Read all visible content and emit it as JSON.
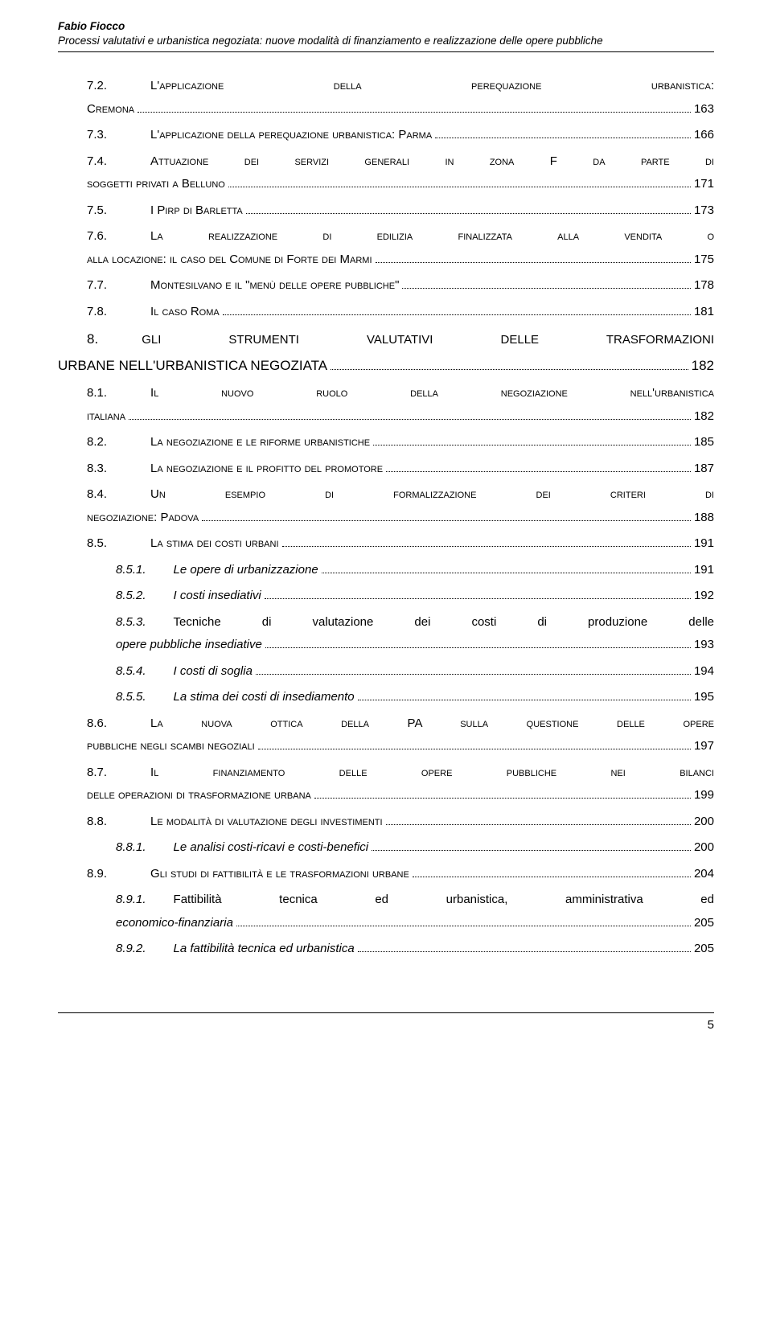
{
  "header": {
    "author": "Fabio Fiocco",
    "subtitle": "Processi valutativi e urbanistica negoziata: nuove modalità di finanziamento e realizzazione delle opere pubbliche"
  },
  "footer": {
    "pagenum": "5"
  },
  "toc": {
    "e72_num": "7.2.",
    "e72_first": "L'applicazione della perequazione urbanistica:",
    "e72_last": "Cremona",
    "e72_pg": "163",
    "e73_num": "7.3.",
    "e73_title": "L'applicazione della perequazione urbanistica: Parma",
    "e73_pg": "166",
    "e74_num": "7.4.",
    "e74_first": "Attuazione dei servizi generali in zona F da parte di",
    "e74_last": "soggetti privati a Belluno",
    "e74_pg": "171",
    "e75_num": "7.5.",
    "e75_title": "I Pirp di Barletta",
    "e75_pg": "173",
    "e76_num": "7.6.",
    "e76_first": "La realizzazione di edilizia finalizzata alla vendita o",
    "e76_last": "alla locazione: il caso del Comune di Forte dei Marmi",
    "e76_pg": "175",
    "e77_num": "7.7.",
    "e77_title": "Montesilvano e il \"menù delle opere pubbliche\"",
    "e77_pg": "178",
    "e78_num": "7.8.",
    "e78_title": "Il caso Roma",
    "e78_pg": "181",
    "s8_num": "8.",
    "s8_first": "GLI STRUMENTI VALUTATIVI DELLE TRASFORMAZIONI",
    "s8_last": "URBANE NELL'URBANISTICA NEGOZIATA",
    "s8_pg": "182",
    "e81_num": "8.1.",
    "e81_first": "Il nuovo ruolo della negoziazione nell'urbanistica",
    "e81_last": "italiana",
    "e81_pg": "182",
    "e82_num": "8.2.",
    "e82_title": "La negoziazione e le riforme urbanistiche",
    "e82_pg": "185",
    "e83_num": "8.3.",
    "e83_title": "La negoziazione e il profitto del promotore",
    "e83_pg": "187",
    "e84_num": "8.4.",
    "e84_first": "Un esempio di formalizzazione dei criteri di",
    "e84_last": "negoziazione: Padova",
    "e84_pg": "188",
    "e85_num": "8.5.",
    "e85_title": "La stima dei costi urbani",
    "e85_pg": "191",
    "e851_num": "8.5.1.",
    "e851_title": "Le opere di urbanizzazione",
    "e851_pg": "191",
    "e852_num": "8.5.2.",
    "e852_title": "I costi insediativi",
    "e852_pg": "192",
    "e853_num": "8.5.3.",
    "e853_first": "Tecniche di valutazione dei costi di produzione delle",
    "e853_last": "opere pubbliche insediative",
    "e853_pg": "193",
    "e854_num": "8.5.4.",
    "e854_title": "I costi di soglia",
    "e854_pg": "194",
    "e855_num": "8.5.5.",
    "e855_title": "La stima dei costi di insediamento",
    "e855_pg": "195",
    "e86_num": "8.6.",
    "e86_first": "La nuova ottica della PA sulla questione delle opere",
    "e86_last": "pubbliche negli scambi negoziali",
    "e86_pg": "197",
    "e87_num": "8.7.",
    "e87_first": "Il finanziamento delle opere pubbliche nei bilanci",
    "e87_last": "delle operazioni di trasformazione urbana",
    "e87_pg": "199",
    "e88_num": "8.8.",
    "e88_title": "Le modalità di valutazione degli investimenti",
    "e88_pg": "200",
    "e881_num": "8.8.1.",
    "e881_title": "Le analisi costi-ricavi e costi-benefici",
    "e881_pg": "200",
    "e89_num": "8.9.",
    "e89_title": "Gli studi di fattibilità e le trasformazioni urbane",
    "e89_pg": "204",
    "e891_num": "8.9.1.",
    "e891_first": "Fattibilità tecnica ed urbanistica, amministrativa ed",
    "e891_last": "economico-finanziaria",
    "e891_pg": "205",
    "e892_num": "8.9.2.",
    "e892_title": "La fattibilità tecnica ed urbanistica",
    "e892_pg": "205"
  }
}
